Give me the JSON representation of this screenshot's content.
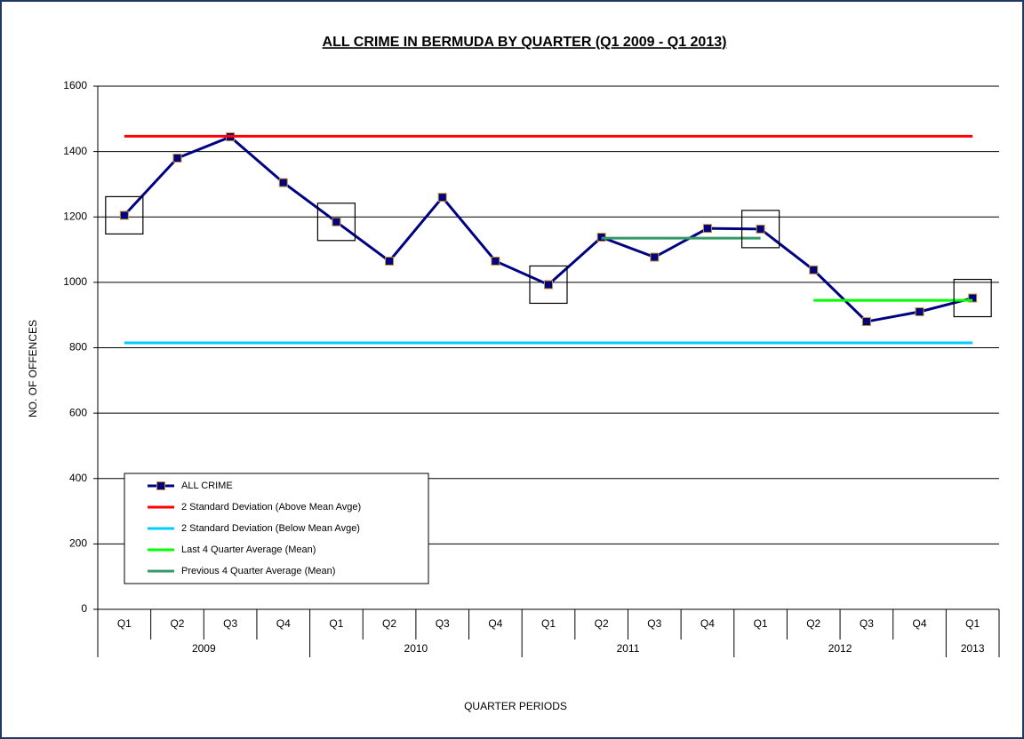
{
  "chart_data": {
    "type": "line",
    "title": "ALL CRIME IN BERMUDA BY QUARTER (Q1 2009 - Q1 2013)",
    "xlabel": "QUARTER PERIODS",
    "ylabel": "NO. OF OFFENCES",
    "category_groups": [
      {
        "name": "2009",
        "categories": [
          "Q1",
          "Q2",
          "Q3",
          "Q4"
        ]
      },
      {
        "name": "2010",
        "categories": [
          "Q1",
          "Q2",
          "Q3",
          "Q4"
        ]
      },
      {
        "name": "2011",
        "categories": [
          "Q1",
          "Q2",
          "Q3",
          "Q4"
        ]
      },
      {
        "name": "2012",
        "categories": [
          "Q1",
          "Q2",
          "Q3",
          "Q4"
        ]
      },
      {
        "name": "2013",
        "categories": [
          "Q1"
        ]
      }
    ],
    "series": [
      {
        "name": "ALL CRIME",
        "color": "#000080",
        "marker": "square",
        "values": [
          1205,
          1380,
          1445,
          1305,
          1185,
          1065,
          1260,
          1065,
          993,
          1138,
          1077,
          1165,
          1163,
          1038,
          880,
          910,
          952
        ]
      },
      {
        "name": "2 Standard Deviation (Above Mean Avge)",
        "color": "#ff0000",
        "values": [
          1447,
          1447,
          1447,
          1447,
          1447,
          1447,
          1447,
          1447,
          1447,
          1447,
          1447,
          1447,
          1447,
          1447,
          1447,
          1447,
          1447
        ]
      },
      {
        "name": "2 Standard Deviation (Below Mean Avge)",
        "color": "#00ccff",
        "values": [
          815,
          815,
          815,
          815,
          815,
          815,
          815,
          815,
          815,
          815,
          815,
          815,
          815,
          815,
          815,
          815,
          815
        ]
      },
      {
        "name": "Last 4 Quarter Average (Mean)",
        "color": "#00ff00",
        "values": [
          null,
          null,
          null,
          null,
          null,
          null,
          null,
          null,
          null,
          null,
          null,
          null,
          null,
          945,
          945,
          945,
          945
        ]
      },
      {
        "name": "Previous 4 Quarter Average (Mean)",
        "color": "#339966",
        "values": [
          null,
          null,
          null,
          null,
          null,
          null,
          null,
          null,
          null,
          1135,
          1135,
          1135,
          1135,
          null,
          null,
          null,
          null
        ]
      }
    ],
    "ylim": [
      0,
      1600
    ],
    "yticks": [
      0,
      200,
      400,
      600,
      800,
      1000,
      1200,
      1400,
      1600
    ],
    "grid": true
  }
}
